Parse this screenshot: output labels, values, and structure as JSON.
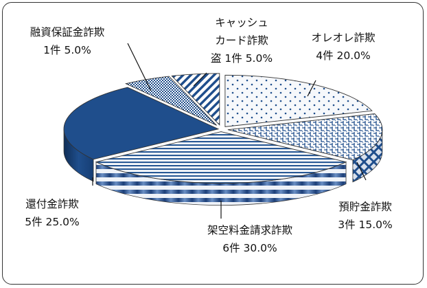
{
  "chart_data": {
    "type": "pie",
    "title": "",
    "slices": [
      {
        "label": "オレオレ詐欺",
        "count_text": "4件",
        "percent_text": "20.0%",
        "value": 20.0,
        "pattern": "dots"
      },
      {
        "label": "預貯金詐欺",
        "count_text": "3件",
        "percent_text": "15.0%",
        "value": 15.0,
        "pattern": "weave"
      },
      {
        "label": "架空料金請求詐欺",
        "count_text": "6件",
        "percent_text": "30.0%",
        "value": 30.0,
        "pattern": "horizontal"
      },
      {
        "label": "還付金詐欺",
        "count_text": "5件",
        "percent_text": "25.0%",
        "value": 25.0,
        "pattern": "solid"
      },
      {
        "label": "融資保証金詐欺",
        "count_text": "1件",
        "percent_text": "5.0%",
        "value": 5.0,
        "pattern": "checker"
      },
      {
        "label": "キャッシュカード詐欺盗",
        "label_lines": [
          "キャッシュ",
          "カード詐欺",
          "盗"
        ],
        "count_text": "1件",
        "percent_text": "5.0%",
        "value": 5.0,
        "pattern": "diagonal"
      }
    ],
    "colors": {
      "dark_blue": "#1f4e8c",
      "light_face": "#f2f5fa",
      "outline": "#333333"
    }
  }
}
